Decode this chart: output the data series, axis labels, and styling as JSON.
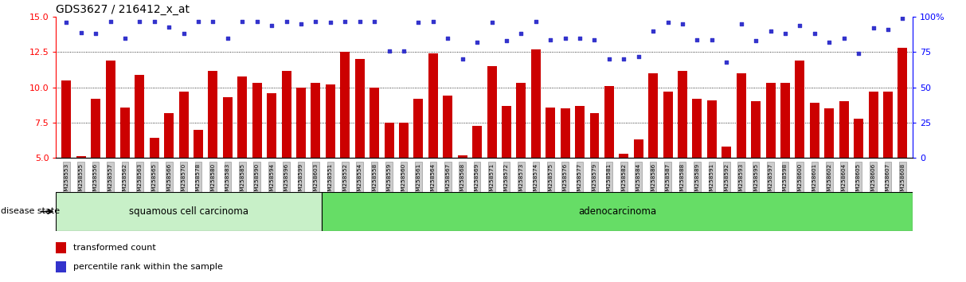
{
  "title": "GDS3627 / 216412_x_at",
  "samples": [
    "GSM258553",
    "GSM258555",
    "GSM258556",
    "GSM258557",
    "GSM258562",
    "GSM258563",
    "GSM258565",
    "GSM258566",
    "GSM258570",
    "GSM258578",
    "GSM258580",
    "GSM258583",
    "GSM258585",
    "GSM258590",
    "GSM258594",
    "GSM258596",
    "GSM258599",
    "GSM258603",
    "GSM258551",
    "GSM258552",
    "GSM258554",
    "GSM258558",
    "GSM258559",
    "GSM258560",
    "GSM258561",
    "GSM258564",
    "GSM258567",
    "GSM258568",
    "GSM258569",
    "GSM258571",
    "GSM258572",
    "GSM258573",
    "GSM258574",
    "GSM258575",
    "GSM258576",
    "GSM258577",
    "GSM258579",
    "GSM258581",
    "GSM258582",
    "GSM258584",
    "GSM258586",
    "GSM258587",
    "GSM258588",
    "GSM258589",
    "GSM258591",
    "GSM258592",
    "GSM258593",
    "GSM258595",
    "GSM258597",
    "GSM258598",
    "GSM258600",
    "GSM258601",
    "GSM258602",
    "GSM258604",
    "GSM258605",
    "GSM258606",
    "GSM258607",
    "GSM258608"
  ],
  "bar_values": [
    10.5,
    5.1,
    9.2,
    11.9,
    8.6,
    10.9,
    6.4,
    8.2,
    9.7,
    7.0,
    11.2,
    9.3,
    10.8,
    10.3,
    9.6,
    11.2,
    10.0,
    10.3,
    10.2,
    12.5,
    12.0,
    10.0,
    7.5,
    7.5,
    9.2,
    12.4,
    9.4,
    5.2,
    7.3,
    11.5,
    8.7,
    10.3,
    12.7,
    8.6,
    8.5,
    8.7,
    8.2,
    10.1,
    5.3,
    6.3,
    11.0,
    9.7,
    11.2,
    9.2,
    9.1,
    5.8,
    11.0,
    9.0,
    10.3,
    10.3,
    11.9,
    8.9,
    8.5,
    9.0,
    7.8,
    9.7,
    9.7,
    12.8
  ],
  "percentile_values": [
    96,
    89,
    88,
    97,
    85,
    97,
    97,
    93,
    88,
    97,
    97,
    85,
    97,
    97,
    94,
    97,
    95,
    97,
    96,
    97,
    97,
    97,
    76,
    76,
    96,
    97,
    85,
    70,
    82,
    96,
    83,
    88,
    97,
    84,
    85,
    85,
    84,
    70,
    70,
    72,
    90,
    96,
    95,
    84,
    84,
    68,
    95,
    83,
    90,
    88,
    94,
    88,
    82,
    85,
    74,
    92,
    91,
    99
  ],
  "squamous_count": 18,
  "bar_color": "#cc0000",
  "dot_color": "#3333cc",
  "ylim_left": [
    5,
    15
  ],
  "ylim_right": [
    0,
    100
  ],
  "yticks_left": [
    5,
    7.5,
    10,
    12.5,
    15
  ],
  "yticks_right": [
    0,
    25,
    50,
    75,
    100
  ],
  "squamous_color": "#c8f0c8",
  "adeno_color": "#66dd66",
  "legend_bar_label": "transformed count",
  "legend_dot_label": "percentile rank within the sample",
  "disease_state_label": "disease state",
  "squamous_label": "squamous cell carcinoma",
  "adeno_label": "adenocarcinoma",
  "right_ytick_labels": [
    "0",
    "25",
    "50",
    "75",
    "100%"
  ]
}
